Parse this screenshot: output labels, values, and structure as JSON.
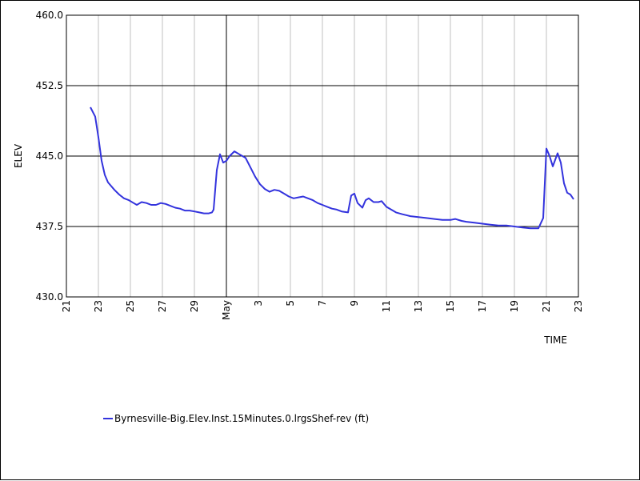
{
  "chart_data": {
    "type": "line",
    "title": "",
    "xlabel": "TIME",
    "ylabel": "ELEV",
    "ylim": [
      430.0,
      460.0
    ],
    "yticks": [
      {
        "value": 430.0,
        "label": "430.0"
      },
      {
        "value": 437.5,
        "label": "437.5"
      },
      {
        "value": 445.0,
        "label": "445.0"
      },
      {
        "value": 452.5,
        "label": "452.5"
      },
      {
        "value": 460.0,
        "label": "460.0"
      }
    ],
    "xlim": [
      0,
      32
    ],
    "xticks": [
      {
        "day": 0,
        "label": "21"
      },
      {
        "day": 2,
        "label": "23"
      },
      {
        "day": 4,
        "label": "25"
      },
      {
        "day": 6,
        "label": "27"
      },
      {
        "day": 8,
        "label": "29"
      },
      {
        "day": 10,
        "label": "May",
        "major": true
      },
      {
        "day": 12,
        "label": "3"
      },
      {
        "day": 14,
        "label": "5"
      },
      {
        "day": 16,
        "label": "7"
      },
      {
        "day": 18,
        "label": "9"
      },
      {
        "day": 20,
        "label": "11"
      },
      {
        "day": 22,
        "label": "13"
      },
      {
        "day": 24,
        "label": "15"
      },
      {
        "day": 26,
        "label": "17"
      },
      {
        "day": 28,
        "label": "19"
      },
      {
        "day": 30,
        "label": "21"
      },
      {
        "day": 32,
        "label": "23"
      }
    ],
    "grid": true,
    "legend_position": "bottom-left",
    "series": [
      {
        "name": "Byrnesville-Big.Elev.Inst.15Minutes.0.lrgsShef-rev (ft)",
        "color": "#3333dd",
        "points": [
          [
            1.5,
            450.2
          ],
          [
            1.8,
            449.2
          ],
          [
            2.0,
            447.0
          ],
          [
            2.2,
            444.5
          ],
          [
            2.4,
            443.0
          ],
          [
            2.6,
            442.2
          ],
          [
            2.8,
            441.8
          ],
          [
            3.0,
            441.4
          ],
          [
            3.3,
            440.9
          ],
          [
            3.6,
            440.5
          ],
          [
            3.9,
            440.3
          ],
          [
            4.2,
            440.0
          ],
          [
            4.4,
            439.8
          ],
          [
            4.7,
            440.1
          ],
          [
            5.0,
            440.0
          ],
          [
            5.3,
            439.8
          ],
          [
            5.6,
            439.8
          ],
          [
            5.9,
            440.0
          ],
          [
            6.2,
            439.9
          ],
          [
            6.5,
            439.7
          ],
          [
            6.8,
            439.5
          ],
          [
            7.1,
            439.4
          ],
          [
            7.4,
            439.2
          ],
          [
            7.7,
            439.2
          ],
          [
            8.0,
            439.1
          ],
          [
            8.3,
            439.0
          ],
          [
            8.6,
            438.9
          ],
          [
            8.9,
            438.9
          ],
          [
            9.1,
            439.0
          ],
          [
            9.2,
            439.3
          ],
          [
            9.4,
            443.5
          ],
          [
            9.6,
            445.2
          ],
          [
            9.8,
            444.3
          ],
          [
            10.0,
            444.5
          ],
          [
            10.2,
            445.0
          ],
          [
            10.5,
            445.5
          ],
          [
            10.8,
            445.2
          ],
          [
            11.2,
            444.8
          ],
          [
            11.5,
            443.8
          ],
          [
            11.8,
            442.8
          ],
          [
            12.1,
            442.0
          ],
          [
            12.4,
            441.5
          ],
          [
            12.7,
            441.2
          ],
          [
            13.0,
            441.4
          ],
          [
            13.3,
            441.3
          ],
          [
            13.6,
            441.0
          ],
          [
            13.9,
            440.7
          ],
          [
            14.2,
            440.5
          ],
          [
            14.5,
            440.6
          ],
          [
            14.8,
            440.7
          ],
          [
            15.1,
            440.5
          ],
          [
            15.4,
            440.3
          ],
          [
            15.7,
            440.0
          ],
          [
            16.0,
            439.8
          ],
          [
            16.3,
            439.6
          ],
          [
            16.6,
            439.4
          ],
          [
            16.9,
            439.3
          ],
          [
            17.2,
            439.1
          ],
          [
            17.6,
            439.0
          ],
          [
            17.8,
            440.8
          ],
          [
            18.0,
            441.0
          ],
          [
            18.2,
            440.0
          ],
          [
            18.5,
            439.5
          ],
          [
            18.7,
            440.3
          ],
          [
            18.9,
            440.5
          ],
          [
            19.2,
            440.1
          ],
          [
            19.5,
            440.1
          ],
          [
            19.7,
            440.2
          ],
          [
            20.0,
            439.6
          ],
          [
            20.3,
            439.3
          ],
          [
            20.6,
            439.0
          ],
          [
            21.0,
            438.8
          ],
          [
            21.5,
            438.6
          ],
          [
            22.0,
            438.5
          ],
          [
            22.5,
            438.4
          ],
          [
            23.0,
            438.3
          ],
          [
            23.5,
            438.2
          ],
          [
            24.0,
            438.2
          ],
          [
            24.3,
            438.3
          ],
          [
            24.7,
            438.1
          ],
          [
            25.0,
            438.0
          ],
          [
            25.5,
            437.9
          ],
          [
            26.0,
            437.8
          ],
          [
            26.5,
            437.7
          ],
          [
            27.0,
            437.6
          ],
          [
            27.5,
            437.6
          ],
          [
            28.0,
            437.5
          ],
          [
            28.5,
            437.4
          ],
          [
            29.0,
            437.3
          ],
          [
            29.5,
            437.3
          ],
          [
            29.8,
            438.4
          ],
          [
            30.0,
            445.8
          ],
          [
            30.2,
            445.0
          ],
          [
            30.4,
            443.9
          ],
          [
            30.7,
            445.3
          ],
          [
            30.9,
            444.3
          ],
          [
            31.1,
            442.1
          ],
          [
            31.3,
            441.1
          ],
          [
            31.5,
            440.9
          ],
          [
            31.7,
            440.4
          ]
        ]
      }
    ]
  }
}
